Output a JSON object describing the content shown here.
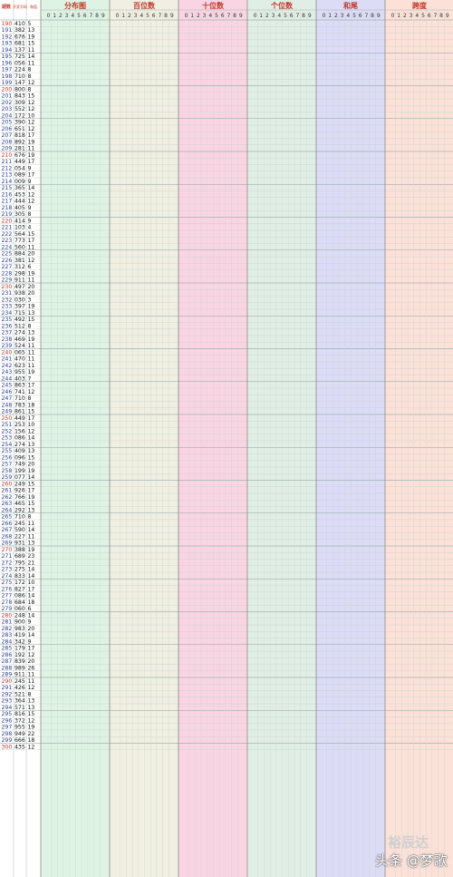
{
  "chart_data": {
    "type": "table",
    "columns": {
      "period": "期数",
      "draw": "开奖号码",
      "sum": "和值"
    },
    "sections": [
      {
        "title": "分布图",
        "color": "#dff3e4"
      },
      {
        "title": "百位数",
        "color": "#f0efe1"
      },
      {
        "title": "十位数",
        "color": "#f9d5e3"
      },
      {
        "title": "个位数",
        "color": "#e1eee5"
      },
      {
        "title": "和尾",
        "color": "#dcdcf6"
      },
      {
        "title": "跨度",
        "color": "#fbe1d8"
      }
    ],
    "digit_header": [
      "0",
      "1",
      "2",
      "3",
      "4",
      "5",
      "6",
      "7",
      "8",
      "9"
    ],
    "rows": [
      {
        "period": "190",
        "draw": "410",
        "sum": "5"
      },
      {
        "period": "191",
        "draw": "382",
        "sum": "13"
      },
      {
        "period": "192",
        "draw": "676",
        "sum": "19"
      },
      {
        "period": "193",
        "draw": "681",
        "sum": "15"
      },
      {
        "period": "194",
        "draw": "137",
        "sum": "11"
      },
      {
        "period": "195",
        "draw": "725",
        "sum": "14"
      },
      {
        "period": "196",
        "draw": "056",
        "sum": "11"
      },
      {
        "period": "197",
        "draw": "224",
        "sum": "8"
      },
      {
        "period": "198",
        "draw": "710",
        "sum": "8"
      },
      {
        "period": "199",
        "draw": "147",
        "sum": "12"
      },
      {
        "period": "200",
        "draw": "800",
        "sum": "8"
      },
      {
        "period": "201",
        "draw": "843",
        "sum": "15"
      },
      {
        "period": "202",
        "draw": "309",
        "sum": "12"
      },
      {
        "period": "203",
        "draw": "552",
        "sum": "12"
      },
      {
        "period": "204",
        "draw": "172",
        "sum": "10"
      },
      {
        "period": "205",
        "draw": "390",
        "sum": "12"
      },
      {
        "period": "206",
        "draw": "651",
        "sum": "12"
      },
      {
        "period": "207",
        "draw": "818",
        "sum": "17"
      },
      {
        "period": "208",
        "draw": "892",
        "sum": "19"
      },
      {
        "period": "209",
        "draw": "281",
        "sum": "11"
      },
      {
        "period": "210",
        "draw": "676",
        "sum": "19"
      },
      {
        "period": "211",
        "draw": "449",
        "sum": "17"
      },
      {
        "period": "212",
        "draw": "054",
        "sum": "9"
      },
      {
        "period": "213",
        "draw": "089",
        "sum": "17"
      },
      {
        "period": "214",
        "draw": "009",
        "sum": "9"
      },
      {
        "period": "215",
        "draw": "365",
        "sum": "14"
      },
      {
        "period": "216",
        "draw": "453",
        "sum": "12"
      },
      {
        "period": "217",
        "draw": "444",
        "sum": "12"
      },
      {
        "period": "218",
        "draw": "405",
        "sum": "9"
      },
      {
        "period": "219",
        "draw": "305",
        "sum": "8"
      },
      {
        "period": "220",
        "draw": "414",
        "sum": "9"
      },
      {
        "period": "221",
        "draw": "103",
        "sum": "4"
      },
      {
        "period": "222",
        "draw": "564",
        "sum": "15"
      },
      {
        "period": "223",
        "draw": "773",
        "sum": "17"
      },
      {
        "period": "224",
        "draw": "560",
        "sum": "11"
      },
      {
        "period": "225",
        "draw": "884",
        "sum": "20"
      },
      {
        "period": "226",
        "draw": "381",
        "sum": "12"
      },
      {
        "period": "227",
        "draw": "312",
        "sum": "6"
      },
      {
        "period": "228",
        "draw": "298",
        "sum": "19"
      },
      {
        "period": "229",
        "draw": "911",
        "sum": "11"
      },
      {
        "period": "230",
        "draw": "497",
        "sum": "20"
      },
      {
        "period": "231",
        "draw": "938",
        "sum": "20"
      },
      {
        "period": "232",
        "draw": "030",
        "sum": "3"
      },
      {
        "period": "233",
        "draw": "397",
        "sum": "19"
      },
      {
        "period": "234",
        "draw": "715",
        "sum": "13"
      },
      {
        "period": "235",
        "draw": "492",
        "sum": "15"
      },
      {
        "period": "236",
        "draw": "512",
        "sum": "8"
      },
      {
        "period": "237",
        "draw": "274",
        "sum": "13"
      },
      {
        "period": "238",
        "draw": "469",
        "sum": "19"
      },
      {
        "period": "239",
        "draw": "524",
        "sum": "11"
      },
      {
        "period": "240",
        "draw": "065",
        "sum": "11"
      },
      {
        "period": "241",
        "draw": "470",
        "sum": "11"
      },
      {
        "period": "242",
        "draw": "623",
        "sum": "11"
      },
      {
        "period": "243",
        "draw": "955",
        "sum": "19"
      },
      {
        "period": "244",
        "draw": "403",
        "sum": "7"
      },
      {
        "period": "245",
        "draw": "863",
        "sum": "17"
      },
      {
        "period": "246",
        "draw": "741",
        "sum": "12"
      },
      {
        "period": "247",
        "draw": "710",
        "sum": "8"
      },
      {
        "period": "248",
        "draw": "783",
        "sum": "18"
      },
      {
        "period": "249",
        "draw": "861",
        "sum": "15"
      },
      {
        "period": "250",
        "draw": "449",
        "sum": "17"
      },
      {
        "period": "251",
        "draw": "253",
        "sum": "10"
      },
      {
        "period": "252",
        "draw": "156",
        "sum": "12"
      },
      {
        "period": "253",
        "draw": "086",
        "sum": "14"
      },
      {
        "period": "254",
        "draw": "274",
        "sum": "13"
      },
      {
        "period": "255",
        "draw": "409",
        "sum": "13"
      },
      {
        "period": "256",
        "draw": "096",
        "sum": "15"
      },
      {
        "period": "257",
        "draw": "749",
        "sum": "20"
      },
      {
        "period": "258",
        "draw": "199",
        "sum": "19"
      },
      {
        "period": "259",
        "draw": "077",
        "sum": "14"
      },
      {
        "period": "260",
        "draw": "249",
        "sum": "15"
      },
      {
        "period": "261",
        "draw": "926",
        "sum": "17"
      },
      {
        "period": "262",
        "draw": "766",
        "sum": "19"
      },
      {
        "period": "263",
        "draw": "465",
        "sum": "15"
      },
      {
        "period": "264",
        "draw": "292",
        "sum": "13"
      },
      {
        "period": "265",
        "draw": "710",
        "sum": "8"
      },
      {
        "period": "266",
        "draw": "245",
        "sum": "11"
      },
      {
        "period": "267",
        "draw": "590",
        "sum": "14"
      },
      {
        "period": "268",
        "draw": "227",
        "sum": "11"
      },
      {
        "period": "269",
        "draw": "931",
        "sum": "13"
      },
      {
        "period": "270",
        "draw": "388",
        "sum": "19"
      },
      {
        "period": "271",
        "draw": "689",
        "sum": "23"
      },
      {
        "period": "272",
        "draw": "795",
        "sum": "21"
      },
      {
        "period": "273",
        "draw": "275",
        "sum": "14"
      },
      {
        "period": "274",
        "draw": "833",
        "sum": "14"
      },
      {
        "period": "275",
        "draw": "172",
        "sum": "10"
      },
      {
        "period": "276",
        "draw": "827",
        "sum": "17"
      },
      {
        "period": "277",
        "draw": "086",
        "sum": "14"
      },
      {
        "period": "278",
        "draw": "684",
        "sum": "18"
      },
      {
        "period": "279",
        "draw": "060",
        "sum": "6"
      },
      {
        "period": "280",
        "draw": "248",
        "sum": "14"
      },
      {
        "period": "281",
        "draw": "900",
        "sum": "9"
      },
      {
        "period": "282",
        "draw": "983",
        "sum": "20"
      },
      {
        "period": "283",
        "draw": "419",
        "sum": "14"
      },
      {
        "period": "284",
        "draw": "342",
        "sum": "9"
      },
      {
        "period": "285",
        "draw": "179",
        "sum": "17"
      },
      {
        "period": "286",
        "draw": "192",
        "sum": "12"
      },
      {
        "period": "287",
        "draw": "839",
        "sum": "20"
      },
      {
        "period": "288",
        "draw": "989",
        "sum": "26"
      },
      {
        "period": "289",
        "draw": "911",
        "sum": "11"
      },
      {
        "period": "290",
        "draw": "245",
        "sum": "11"
      },
      {
        "period": "291",
        "draw": "426",
        "sum": "12"
      },
      {
        "period": "292",
        "draw": "521",
        "sum": "8"
      },
      {
        "period": "293",
        "draw": "364",
        "sum": "13"
      },
      {
        "period": "294",
        "draw": "571",
        "sum": "13"
      },
      {
        "period": "295",
        "draw": "816",
        "sum": "15"
      },
      {
        "period": "296",
        "draw": "372",
        "sum": "12"
      },
      {
        "period": "297",
        "draw": "955",
        "sum": "19"
      },
      {
        "period": "298",
        "draw": "949",
        "sum": "22"
      },
      {
        "period": "299",
        "draw": "666",
        "sum": "18"
      },
      {
        "period": "300",
        "draw": "435",
        "sum": "12"
      }
    ],
    "watermarks": [
      "裕辰达",
      "头条 @梦歌"
    ]
  }
}
